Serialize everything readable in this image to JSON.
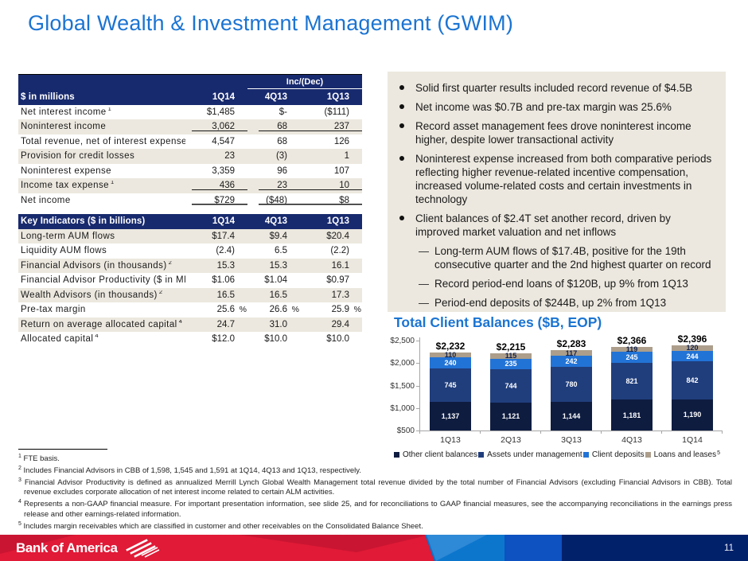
{
  "title": "Global Wealth & Investment Management (GWIM)",
  "colors": {
    "accent_blue": "#1b74d2",
    "table_header_navy": "#182a6e",
    "row_beige": "#ece8df",
    "footer_red": "#e01a37",
    "footer_red_dark": "#c91531",
    "footer_blue_light": "#0c76cd",
    "footer_blue_lighter": "#2e89d6",
    "footer_blue_mid": "#0e51c1",
    "footer_navy": "#02216b"
  },
  "tables": [
    {
      "name": "income-statement",
      "inc_dec_label": "Inc/(Dec)",
      "header_label": "$ in millions",
      "columns": [
        "1Q14",
        "4Q13",
        "1Q13"
      ],
      "stripe_start": "white",
      "rows": [
        {
          "label": "Net interest income",
          "sup": "1",
          "values": [
            "$1,485",
            "$-",
            "($111)"
          ]
        },
        {
          "label": "Noninterest income",
          "values": [
            "3,062",
            "68",
            "237"
          ],
          "underline": true
        },
        {
          "label": "Total revenue, net of interest expense",
          "sup": "1",
          "values": [
            "4,547",
            "68",
            "126"
          ]
        },
        {
          "label": "Provision for credit losses",
          "values": [
            "23",
            "(3)",
            "1"
          ]
        },
        {
          "label": "Noninterest expense",
          "values": [
            "3,359",
            "96",
            "107"
          ]
        },
        {
          "label": "Income tax expense",
          "sup": "1",
          "values": [
            "436",
            "23",
            "10"
          ],
          "underline": true
        },
        {
          "label": "Net income",
          "values": [
            "$729",
            "($48)",
            "$8"
          ],
          "underline": true
        }
      ]
    },
    {
      "name": "key-indicators",
      "header_label": "Key Indicators ($ in billions)",
      "columns": [
        "1Q14",
        "4Q13",
        "1Q13"
      ],
      "stripe_start": "beige",
      "rows": [
        {
          "label": "Long-term AUM flows",
          "values": [
            "$17.4",
            "$9.4",
            "$20.4"
          ]
        },
        {
          "label": "Liquidity AUM flows",
          "values": [
            "(2.4)",
            "6.5",
            "(2.2)"
          ]
        },
        {
          "label": "Financial Advisors (in thousands)",
          "sup": "2",
          "values": [
            "15.3",
            "15.3",
            "16.1"
          ]
        },
        {
          "label": "Financial Advisor Productivity ($ in MM)",
          "sup": "3",
          "values": [
            "$1.06",
            "$1.04",
            "$0.97"
          ]
        },
        {
          "label": "Wealth Advisors (in thousands)",
          "sup": "2",
          "values": [
            "16.5",
            "16.5",
            "17.3"
          ]
        },
        {
          "label": "Pre-tax margin",
          "values": [
            "25.6",
            "26.6",
            "25.9"
          ],
          "unit": "%"
        },
        {
          "label": "Return on average allocated capital",
          "sup": "4",
          "values": [
            "24.7",
            "31.0",
            "29.4"
          ]
        },
        {
          "label": "Allocated capital",
          "sup": "4",
          "values": [
            "$12.0",
            "$10.0",
            "$10.0"
          ]
        }
      ]
    }
  ],
  "bullets": [
    {
      "level": 1,
      "text": "Solid first quarter results included record revenue of $4.5B"
    },
    {
      "level": 1,
      "text": "Net income was $0.7B and pre-tax margin was 25.6%"
    },
    {
      "level": 1,
      "text": "Record asset management fees drove noninterest income higher, despite lower transactional activity"
    },
    {
      "level": 1,
      "text": "Noninterest expense increased from both comparative periods reflecting higher revenue-related incentive compensation, increased volume-related costs and certain investments in technology"
    },
    {
      "level": 1,
      "text": "Client balances of $2.4T set another record, driven by improved market valuation and net inflows"
    },
    {
      "level": 2,
      "text": "Long-term AUM flows of $17.4B, positive for the 19th consecutive quarter and the 2nd highest quarter on record"
    },
    {
      "level": 2,
      "text": "Record period-end loans of $120B, up 9% from 1Q13"
    },
    {
      "level": 2,
      "text": "Period-end deposits of $244B, up 2% from 1Q13"
    }
  ],
  "chart_data": {
    "type": "bar",
    "stacked": true,
    "title": "Total Client Balances ($B, EOP)",
    "categories": [
      "1Q13",
      "2Q13",
      "3Q13",
      "4Q13",
      "1Q14"
    ],
    "series": [
      {
        "name": "Other client balances",
        "color": "#0e1c40",
        "label_color": "#ffffff",
        "values": [
          1137,
          1121,
          1144,
          1181,
          1190
        ],
        "labels": [
          "1,137",
          "1,121",
          "1,144",
          "1,181",
          "1,190"
        ]
      },
      {
        "name": "Assets under management",
        "color": "#203e7c",
        "label_color": "#ffffff",
        "values": [
          745,
          744,
          780,
          821,
          842
        ],
        "labels": [
          "745",
          "744",
          "780",
          "821",
          "842"
        ]
      },
      {
        "name": "Client deposits",
        "color": "#2273d6",
        "label_color": "#ffffff",
        "values": [
          240,
          235,
          242,
          245,
          244
        ],
        "labels": [
          "240",
          "235",
          "242",
          "245",
          "244"
        ]
      },
      {
        "name": "Loans and leases",
        "color": "#ac9e8b",
        "label_color": "#13234d",
        "values": [
          110,
          115,
          117,
          119,
          120
        ],
        "labels": [
          "110",
          "115",
          "117",
          "119",
          "120"
        ],
        "footnote": "5"
      }
    ],
    "totals": [
      2232,
      2215,
      2283,
      2366,
      2396
    ],
    "totals_display": [
      "$2,232",
      "$2,215",
      "$2,283",
      "$2,366",
      "$2,396"
    ],
    "y_ticks": [
      {
        "value": 2500,
        "label": "$2,500"
      },
      {
        "value": 2000,
        "label": "$2,000"
      },
      {
        "value": 1500,
        "label": "$1,500"
      },
      {
        "value": 1000,
        "label": "$1,000"
      },
      {
        "value": 500,
        "label": "$500"
      }
    ],
    "ylim": [
      500,
      2500
    ],
    "legend_position": "bottom"
  },
  "footnotes": [
    {
      "sup": "1",
      "text": "FTE basis."
    },
    {
      "sup": "2",
      "text": "Includes Financial Advisors in CBB of 1,598, 1,545 and 1,591 at 1Q14, 4Q13 and 1Q13, respectively."
    },
    {
      "sup": "3",
      "text": "Financial Advisor Productivity is defined as annualized Merrill Lynch Global Wealth Management total revenue divided by the total number of Financial Advisors (excluding Financial Advisors in CBB). Total revenue excludes corporate allocation of net interest income related to certain ALM activities."
    },
    {
      "sup": "4",
      "text": "Represents a non-GAAP financial measure. For important presentation information, see slide 25, and for reconciliations to GAAP financial measures, see the accompanying reconciliations in the earnings press release and other earnings-related information."
    },
    {
      "sup": "5",
      "text": "Includes margin receivables which are classified in customer and other receivables on the Consolidated Balance Sheet."
    }
  ],
  "footer": {
    "brand": "Bank of America",
    "page_number": "11"
  }
}
